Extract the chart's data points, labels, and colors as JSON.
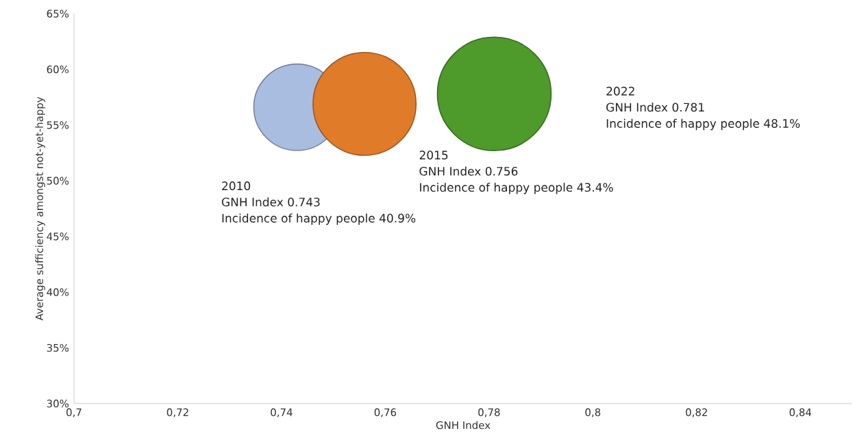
{
  "chart_data": {
    "type": "bubble",
    "xlabel": "GNH Index",
    "ylabel": "Average sufficiency amongst not-yet-happy",
    "x": [
      0.743,
      0.756,
      0.781
    ],
    "values": [
      56.6,
      56.9,
      57.8
    ],
    "sizes": [
      0.58,
      0.82,
      1
    ],
    "colors": [
      "#a9bde0",
      "#e07b2a",
      "#4e9a2a"
    ],
    "xlim": [
      0.7,
      0.85
    ],
    "xticks": [
      {
        "value": 0.7,
        "label": "0,7"
      },
      {
        "value": 0.72,
        "label": "0,72"
      },
      {
        "value": 0.74,
        "label": "0,74"
      },
      {
        "value": 0.76,
        "label": "0,76"
      },
      {
        "value": 0.78,
        "label": "0,78"
      },
      {
        "value": 0.8,
        "label": "0,8"
      },
      {
        "value": 0.82,
        "label": "0,82"
      },
      {
        "value": 0.84,
        "label": "0,84"
      }
    ],
    "ylim": [
      30,
      65
    ],
    "yticks": [
      {
        "value": 30,
        "label": "30%"
      },
      {
        "value": 35,
        "label": "35%"
      },
      {
        "value": 40,
        "label": "40%"
      },
      {
        "value": 45,
        "label": "45%"
      },
      {
        "value": 50,
        "label": "50%"
      },
      {
        "value": 55,
        "label": "55%"
      },
      {
        "value": 60,
        "label": "60%"
      },
      {
        "value": 65,
        "label": "65%"
      }
    ],
    "annotations": [
      "2010",
      "GNH Index 0.743",
      "Incidence of happy people 40.9%",
      "2015",
      "GNH Index 0.756",
      "Incidence of happy people 43.4%",
      "2022",
      "GNH Index 0.781",
      "Incidence of happy people 48.1%"
    ],
    "grid": false
  }
}
